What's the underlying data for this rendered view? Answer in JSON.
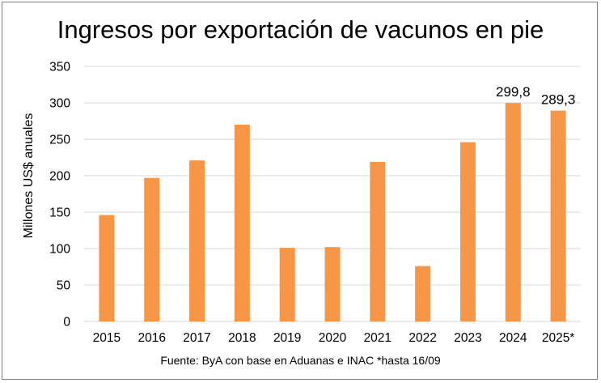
{
  "chart_data": {
    "type": "bar",
    "title": "Ingresos por exportación de vacunos en pie",
    "ylabel": "Millones US$ anuales",
    "xlabel": "",
    "source": "Fuente: ByA con base en Aduanas e INAC *hasta 16/09",
    "categories": [
      "2015",
      "2016",
      "2017",
      "2018",
      "2019",
      "2020",
      "2021",
      "2022",
      "2023",
      "2024",
      "2025*"
    ],
    "values": [
      146,
      197,
      221,
      270,
      101,
      102,
      219,
      76,
      246,
      299.8,
      289.3
    ],
    "data_labels": [
      null,
      null,
      null,
      null,
      null,
      null,
      null,
      null,
      null,
      "299,8",
      "289,3"
    ],
    "yticks": [
      "0",
      "50",
      "100",
      "150",
      "200",
      "250",
      "300",
      "350"
    ],
    "ylim": [
      0,
      350
    ],
    "grid": true,
    "legend": "none",
    "bar_color": "#F79646",
    "grid_color": "#D9D9D9"
  }
}
